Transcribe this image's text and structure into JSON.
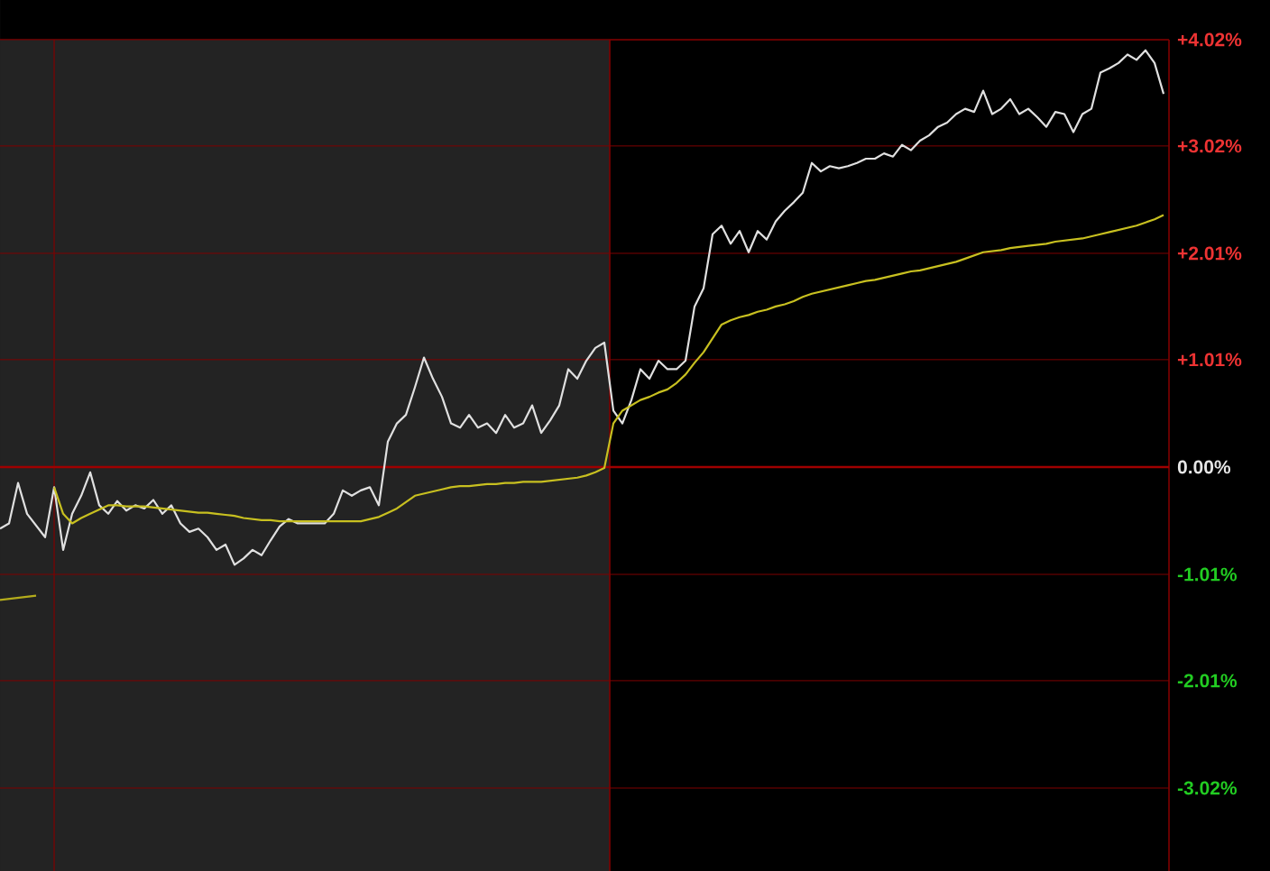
{
  "chart_data": {
    "type": "line",
    "categories": [
      null,
      null,
      null,
      null,
      null,
      null,
      null,
      null,
      null,
      null,
      null,
      null,
      null,
      null,
      null,
      null,
      null,
      null,
      null,
      null,
      null,
      null,
      null,
      null,
      null,
      null,
      null,
      null,
      null,
      null,
      null,
      null,
      null,
      null,
      null,
      null,
      null,
      null,
      null,
      null,
      null,
      null,
      null,
      null,
      null,
      null,
      null,
      null,
      null,
      null,
      null,
      null,
      null,
      null,
      null,
      null,
      null,
      null,
      null,
      null,
      null,
      null,
      null,
      null,
      null,
      null,
      null,
      null,
      null,
      null,
      null,
      null,
      null,
      null,
      null,
      null,
      null,
      null,
      null,
      null,
      null,
      null,
      null,
      null,
      null,
      null,
      null,
      null,
      null,
      null,
      null,
      null,
      null,
      null,
      null,
      null,
      null,
      null,
      null,
      null,
      null,
      null,
      null,
      null,
      null,
      null,
      null,
      null,
      null,
      null,
      null,
      null,
      null,
      null,
      null,
      null,
      null,
      null,
      null,
      null,
      null,
      null,
      null,
      null,
      null,
      null,
      null,
      null,
      null,
      null
    ],
    "ylim": [
      -3.8,
      4.02
    ],
    "yticks": [
      {
        "value": 4.02,
        "label": "+4.02%"
      },
      {
        "value": 3.02,
        "label": "+3.02%"
      },
      {
        "value": 2.01,
        "label": "+2.01%"
      },
      {
        "value": 1.01,
        "label": "+1.01%"
      },
      {
        "value": 0,
        "label": "0.00%"
      },
      {
        "value": -1.01,
        "label": "-1.01%"
      },
      {
        "value": -2.01,
        "label": "-2.01%"
      },
      {
        "value": -3.02,
        "label": "-3.02%"
      }
    ],
    "tick_labels": "y",
    "grid": "y",
    "marker": "none",
    "line_style": "solid",
    "ref_lines": [
      {
        "axis": "y",
        "value": 0,
        "color": "#a00000"
      }
    ],
    "series": [
      {
        "color": "#e0e0e0",
        "values": [
          -0.58,
          -0.53,
          -0.15,
          -0.44,
          -0.55,
          -0.66,
          -0.19,
          -0.78,
          -0.44,
          -0.27,
          -0.05,
          -0.36,
          -0.44,
          -0.32,
          -0.41,
          -0.36,
          -0.39,
          -0.31,
          -0.44,
          -0.36,
          -0.53,
          -0.61,
          -0.58,
          -0.66,
          -0.78,
          -0.73,
          -0.92,
          -0.86,
          -0.78,
          -0.83,
          -0.69,
          -0.56,
          -0.49,
          -0.53,
          -0.53,
          -0.53,
          -0.53,
          -0.44,
          -0.22,
          -0.27,
          -0.22,
          -0.19,
          -0.36,
          0.24,
          0.41,
          0.49,
          0.75,
          1.03,
          0.83,
          0.66,
          0.41,
          0.37,
          0.49,
          0.37,
          0.41,
          0.32,
          0.49,
          0.37,
          0.41,
          0.58,
          0.32,
          0.44,
          0.58,
          0.92,
          0.83,
          1.0,
          1.12,
          1.17,
          0.53,
          0.41,
          0.63,
          0.92,
          0.83,
          1.0,
          0.92,
          0.92,
          1.0,
          1.51,
          1.68,
          2.19,
          2.27,
          2.1,
          2.22,
          2.02,
          2.22,
          2.14,
          2.31,
          2.41,
          2.49,
          2.58,
          2.86,
          2.78,
          2.83,
          2.81,
          2.83,
          2.86,
          2.9,
          2.9,
          2.95,
          2.92,
          3.03,
          2.98,
          3.07,
          3.12,
          3.2,
          3.24,
          3.32,
          3.37,
          3.34,
          3.54,
          3.32,
          3.37,
          3.46,
          3.32,
          3.37,
          3.29,
          3.2,
          3.34,
          3.32,
          3.15,
          3.32,
          3.37,
          3.71,
          3.75,
          3.8,
          3.88,
          3.83,
          3.92,
          3.8,
          3.51
        ]
      },
      {
        "color": "#b4ac1c",
        "values": [
          -1.25,
          -1.24,
          -1.23,
          -1.22,
          -1.21,
          null,
          null,
          null,
          null,
          null,
          null,
          null,
          null,
          null,
          null,
          null,
          null,
          null,
          null,
          null,
          null,
          null,
          null,
          null,
          null,
          null,
          null,
          null,
          null,
          null,
          null,
          null,
          null,
          null,
          null,
          null,
          null,
          null,
          null,
          null,
          null,
          null,
          null,
          null,
          null,
          null,
          null,
          null,
          null,
          null,
          null,
          null,
          null,
          null,
          null,
          null,
          null,
          null,
          null,
          null,
          null,
          null,
          null,
          null,
          null,
          null,
          null,
          null,
          null,
          null,
          null,
          null,
          null,
          null,
          null,
          null,
          null,
          null,
          null,
          null,
          null,
          null,
          null,
          null,
          null,
          null,
          null,
          null,
          null,
          null,
          null,
          null,
          null,
          null,
          null,
          null,
          null,
          null,
          null,
          null,
          null,
          null,
          null,
          null,
          null,
          null,
          null,
          null,
          null,
          null,
          null,
          null,
          null,
          null,
          null,
          null,
          null,
          null,
          null,
          null,
          null,
          null,
          null,
          null,
          null,
          null,
          null,
          null,
          null,
          null
        ]
      },
      {
        "color": "#c8c020",
        "values": [
          null,
          null,
          null,
          null,
          null,
          null,
          -0.19,
          -0.44,
          -0.53,
          -0.48,
          -0.44,
          -0.4,
          -0.36,
          -0.36,
          -0.37,
          -0.37,
          -0.37,
          -0.38,
          -0.39,
          -0.4,
          -0.41,
          -0.42,
          -0.43,
          -0.43,
          -0.44,
          -0.45,
          -0.46,
          -0.48,
          -0.49,
          -0.5,
          -0.5,
          -0.51,
          -0.51,
          -0.51,
          -0.51,
          -0.51,
          -0.51,
          -0.51,
          -0.51,
          -0.51,
          -0.51,
          -0.49,
          -0.47,
          -0.43,
          -0.39,
          -0.33,
          -0.27,
          -0.25,
          -0.23,
          -0.21,
          -0.19,
          -0.18,
          -0.18,
          -0.17,
          -0.16,
          -0.16,
          -0.15,
          -0.15,
          -0.14,
          -0.14,
          -0.14,
          -0.13,
          -0.12,
          -0.11,
          -0.1,
          -0.08,
          -0.05,
          -0.01,
          0.41,
          0.53,
          0.58,
          0.63,
          0.66,
          0.7,
          0.73,
          0.79,
          0.87,
          0.98,
          1.08,
          1.21,
          1.34,
          1.38,
          1.41,
          1.43,
          1.46,
          1.48,
          1.51,
          1.53,
          1.56,
          1.6,
          1.63,
          1.65,
          1.67,
          1.69,
          1.71,
          1.73,
          1.75,
          1.76,
          1.78,
          1.8,
          1.82,
          1.84,
          1.85,
          1.87,
          1.89,
          1.91,
          1.93,
          1.96,
          1.99,
          2.02,
          2.03,
          2.04,
          2.06,
          2.07,
          2.08,
          2.09,
          2.1,
          2.12,
          2.13,
          2.14,
          2.15,
          2.17,
          2.19,
          2.21,
          2.23,
          2.25,
          2.27,
          2.3,
          2.33,
          2.37
        ]
      }
    ]
  }
}
